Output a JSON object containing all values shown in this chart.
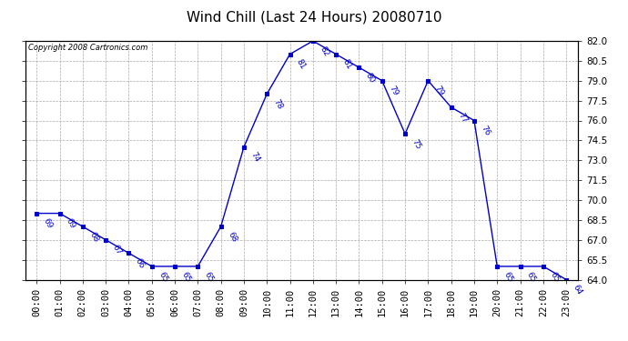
{
  "title": "Wind Chill (Last 24 Hours) 20080710",
  "copyright": "Copyright 2008 Cartronics.com",
  "hours": [
    "00:00",
    "01:00",
    "02:00",
    "03:00",
    "04:00",
    "05:00",
    "06:00",
    "07:00",
    "08:00",
    "09:00",
    "10:00",
    "11:00",
    "12:00",
    "13:00",
    "14:00",
    "15:00",
    "16:00",
    "17:00",
    "18:00",
    "19:00",
    "20:00",
    "21:00",
    "22:00",
    "23:00"
  ],
  "values": [
    69,
    69,
    68,
    67,
    66,
    65,
    65,
    65,
    68,
    74,
    78,
    81,
    82,
    81,
    80,
    79,
    75,
    79,
    77,
    76,
    65,
    65,
    65,
    64
  ],
  "line_color": "#0000cc",
  "marker": "s",
  "ylim_min": 64.0,
  "ylim_max": 82.0,
  "yticks": [
    64.0,
    65.5,
    67.0,
    68.5,
    70.0,
    71.5,
    73.0,
    74.5,
    76.0,
    77.5,
    79.0,
    80.5,
    82.0
  ],
  "background_color": "#ffffff",
  "plot_bg_color": "#ffffff",
  "grid_color": "#aaaaaa",
  "title_fontsize": 11,
  "label_fontsize": 6.5,
  "tick_fontsize": 7.5,
  "copyright_fontsize": 6
}
